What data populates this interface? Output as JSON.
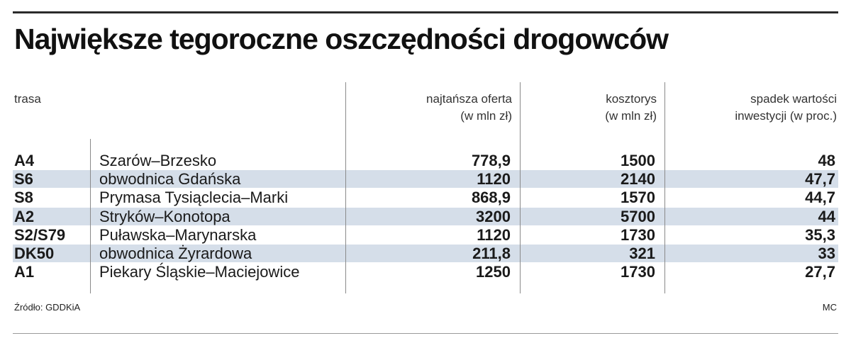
{
  "title": "Największe tegoroczne oszczędności drogowców",
  "chart_data": {
    "type": "table",
    "columns": {
      "trasa": "trasa",
      "offer": [
        "najtańsza oferta",
        "(w mln zł)"
      ],
      "estimate": [
        "kosztorys",
        "(w mln zł)"
      ],
      "drop": [
        "spadek wartości",
        "inwestycji  (w proc.)"
      ]
    },
    "rows": [
      {
        "code": "A4",
        "name": "Szarów–Brzesko",
        "offer": "778,9",
        "estimate": "1500",
        "drop": "48"
      },
      {
        "code": "S6",
        "name": "obwodnica Gdańska",
        "offer": "1120",
        "estimate": "2140",
        "drop": "47,7"
      },
      {
        "code": "S8",
        "name": "Prymasa Tysiąclecia–Marki",
        "offer": "868,9",
        "estimate": "1570",
        "drop": "44,7"
      },
      {
        "code": "A2",
        "name": "Stryków–Konotopa",
        "offer": "3200",
        "estimate": "5700",
        "drop": "44"
      },
      {
        "code": "S2/S79",
        "name": "Puławska–Marynarska",
        "offer": "1120",
        "estimate": "1730",
        "drop": "35,3"
      },
      {
        "code": "DK50",
        "name": "obwodnica Żyrardowa",
        "offer": "211,8",
        "estimate": "321",
        "drop": "33"
      },
      {
        "code": "A1",
        "name": "Piekary Śląskie–Maciejowice",
        "offer": "1250",
        "estimate": "1730",
        "drop": "27,7"
      }
    ]
  },
  "source": "Źródło: GDDKiA",
  "author": "MC",
  "colors": {
    "stripe": "#d5dee9",
    "rule": "#2b2b2b"
  }
}
